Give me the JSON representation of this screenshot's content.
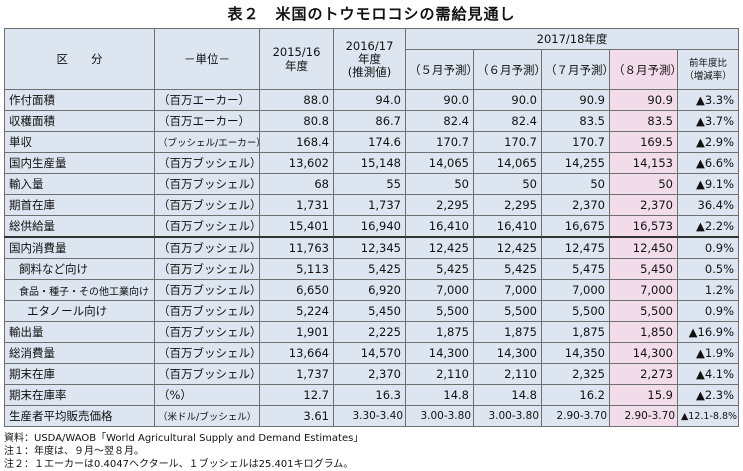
{
  "title": "表２　米国のトウモロコシの需給見通し",
  "header": {
    "category": "区　　分",
    "unit": "－単位－",
    "col_2015": "2015/16\n年度",
    "col_2016": "2016/17\n年度\n(推測値)",
    "group_2017": "2017/18年度",
    "may": "（５月予測）",
    "jun": "（６月予測）",
    "jul": "（７月予測）",
    "aug": "（８月予測）",
    "change": "前年度比\n（増減率）"
  },
  "rows": [
    {
      "label": "作付面積",
      "unit": "（百万エーカー）",
      "y2015": "88.0",
      "y2016": "94.0",
      "may": "90.0",
      "jun": "90.0",
      "jul": "90.9",
      "aug": "90.9",
      "change": "▲3.3%"
    },
    {
      "label": "収穫面積",
      "unit": "（百万エーカー）",
      "y2015": "80.8",
      "y2016": "86.7",
      "may": "82.4",
      "jun": "82.4",
      "jul": "83.5",
      "aug": "83.5",
      "change": "▲3.7%"
    },
    {
      "label": "単収",
      "unit": "（ブッシェル/エーカー）",
      "y2015": "168.4",
      "y2016": "174.6",
      "may": "170.7",
      "jun": "170.7",
      "jul": "170.7",
      "aug": "169.5",
      "change": "▲2.9%"
    },
    {
      "label": "国内生産量",
      "unit": "（百万ブッシェル）",
      "y2015": "13,602",
      "y2016": "15,148",
      "may": "14,065",
      "jun": "14,065",
      "jul": "14,255",
      "aug": "14,153",
      "change": "▲6.6%"
    },
    {
      "label": "輸入量",
      "unit": "（百万ブッシェル）",
      "y2015": "68",
      "y2016": "55",
      "may": "50",
      "jun": "50",
      "jul": "50",
      "aug": "50",
      "change": "▲9.1%"
    },
    {
      "label": "期首在庫",
      "unit": "（百万ブッシェル）",
      "y2015": "1,731",
      "y2016": "1,737",
      "may": "2,295",
      "jun": "2,295",
      "jul": "2,370",
      "aug": "2,370",
      "change": "36.4%"
    },
    {
      "label": "総供給量",
      "unit": "（百万ブッシェル）",
      "y2015": "15,401",
      "y2016": "16,940",
      "may": "16,410",
      "jun": "16,410",
      "jul": "16,675",
      "aug": "16,573",
      "change": "▲2.2%"
    },
    {
      "label": "国内消費量",
      "unit": "（百万ブッシェル）",
      "y2015": "11,763",
      "y2016": "12,345",
      "may": "12,425",
      "jun": "12,425",
      "jul": "12,475",
      "aug": "12,450",
      "change": "0.9%"
    },
    {
      "label": "飼料など向け",
      "unit": "（百万ブッシェル）",
      "y2015": "5,113",
      "y2016": "5,425",
      "may": "5,425",
      "jun": "5,425",
      "jul": "5,475",
      "aug": "5,450",
      "change": "0.5%"
    },
    {
      "label": "食品・種子・その他工業向け",
      "unit": "（百万ブッシェル）",
      "y2015": "6,650",
      "y2016": "6,920",
      "may": "7,000",
      "jun": "7,000",
      "jul": "7,000",
      "aug": "7,000",
      "change": "1.2%"
    },
    {
      "label": "エタノール向け",
      "unit": "（百万ブッシェル）",
      "y2015": "5,224",
      "y2016": "5,450",
      "may": "5,500",
      "jun": "5,500",
      "jul": "5,500",
      "aug": "5,500",
      "change": "0.9%"
    },
    {
      "label": "輸出量",
      "unit": "（百万ブッシェル）",
      "y2015": "1,901",
      "y2016": "2,225",
      "may": "1,875",
      "jun": "1,875",
      "jul": "1,875",
      "aug": "1,850",
      "change": "▲16.9%"
    },
    {
      "label": "総消費量",
      "unit": "（百万ブッシェル）",
      "y2015": "13,664",
      "y2016": "14,570",
      "may": "14,300",
      "jun": "14,300",
      "jul": "14,350",
      "aug": "14,300",
      "change": "▲1.9%"
    },
    {
      "label": "期末在庫",
      "unit": "（百万ブッシェル）",
      "y2015": "1,737",
      "y2016": "2,370",
      "may": "2,110",
      "jun": "2,110",
      "jul": "2,325",
      "aug": "2,273",
      "change": "▲4.1%"
    },
    {
      "label": "期末在庫率",
      "unit": "（%）",
      "y2015": "12.7",
      "y2016": "16.3",
      "may": "14.8",
      "jun": "14.8",
      "jul": "16.2",
      "aug": "15.9",
      "change": "▲2.3%"
    },
    {
      "label": "生産者平均販売価格",
      "unit": "（米ドル/ブッシェル）",
      "y2015": "3.61",
      "y2016": "3.30-3.40",
      "may": "3.00-3.80",
      "jun": "3.00-3.80",
      "jul": "2.90-3.70",
      "aug": "2.90-3.70",
      "change": "▲12.1-8.8%"
    }
  ],
  "notes": {
    "source": "資料：USDA/WAOB「World Agricultural Supply and Demand Estimates」",
    "note1": "注１：年度は、９月～翌８月。",
    "note2": "注２：１エーカーは0.4047ヘクタール、１ブッシェルは25.401キログラム。"
  }
}
